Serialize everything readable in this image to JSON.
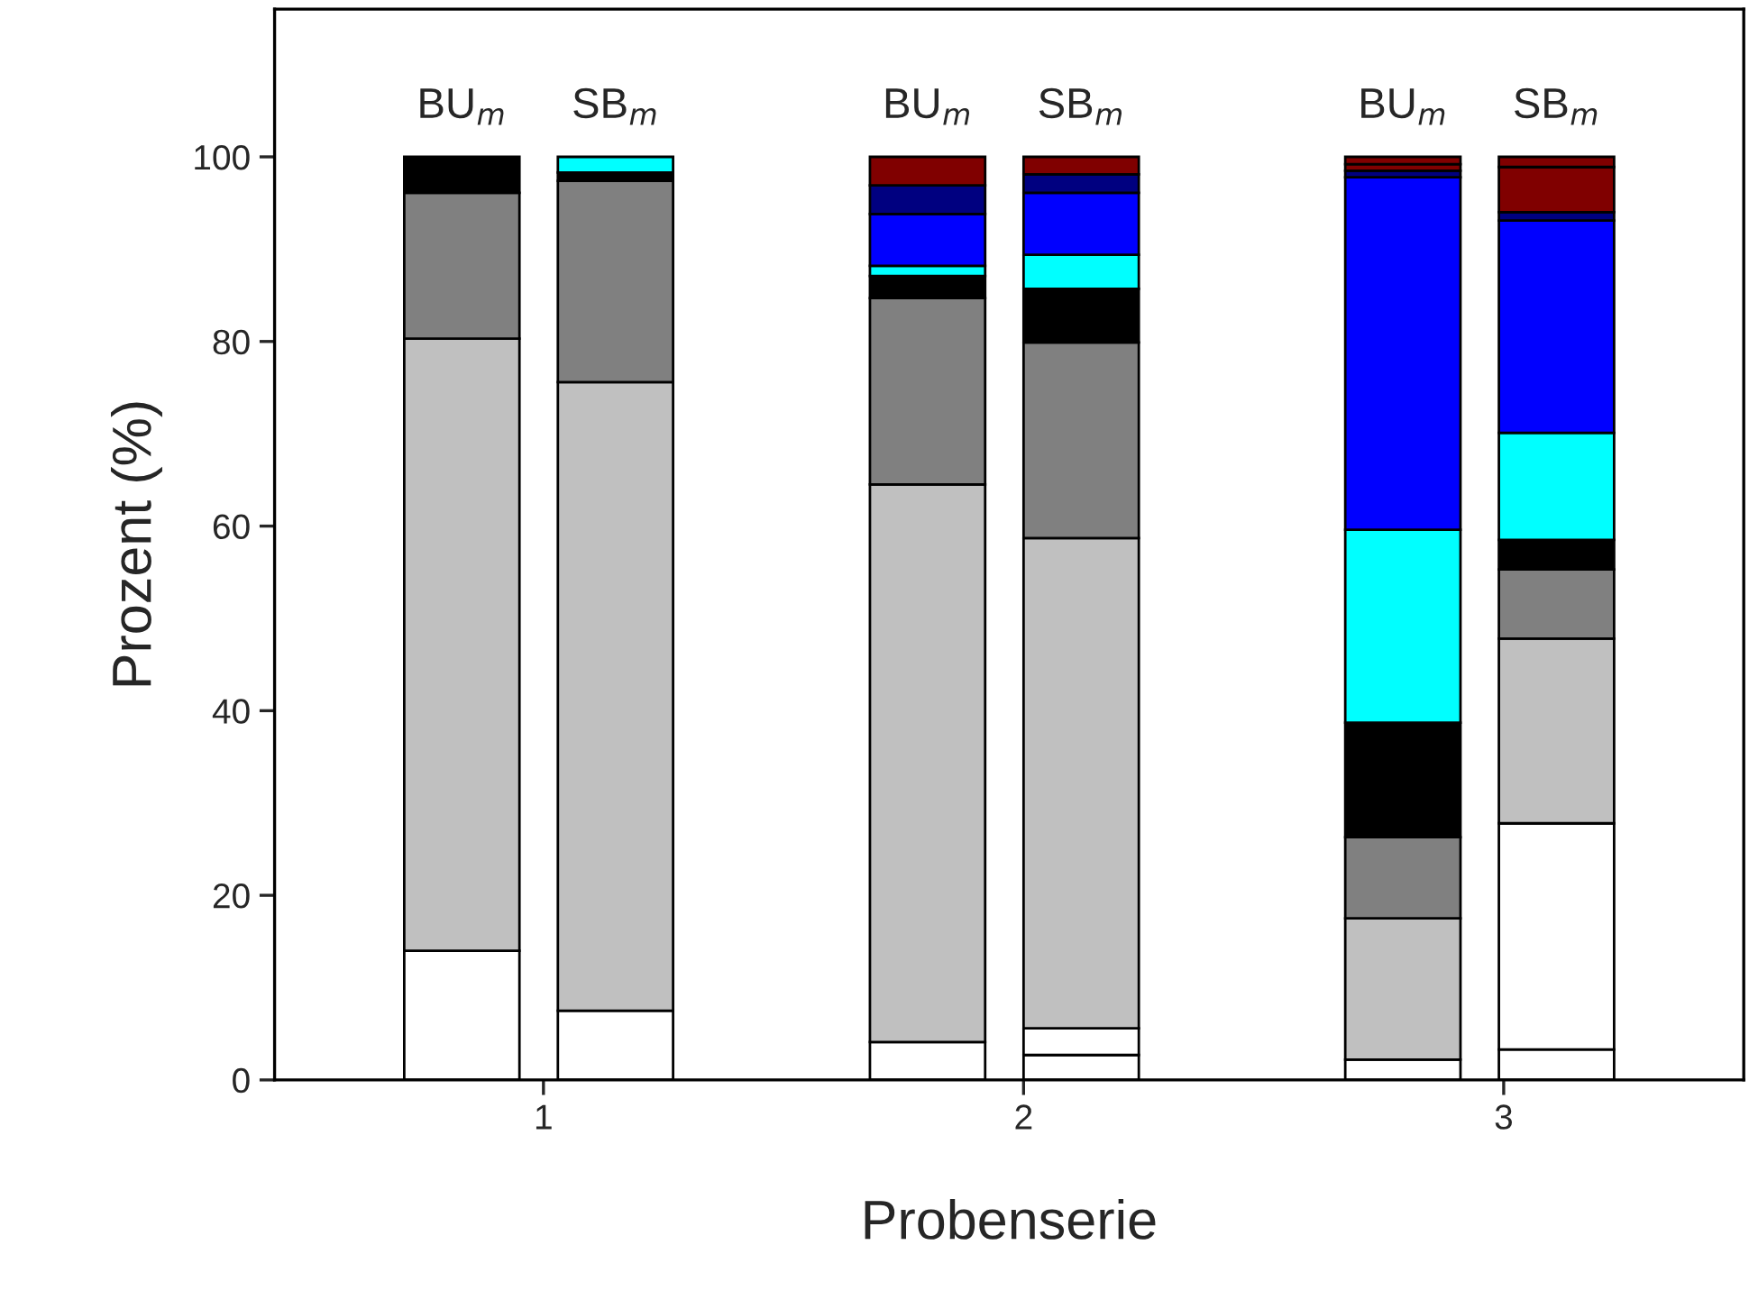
{
  "chart_data": {
    "type": "bar",
    "stacked": true,
    "xlabel": "Probenserie",
    "ylabel": "Prozent (%)",
    "x": [
      0.83,
      1.15,
      1.8,
      2.12,
      2.79,
      3.11
    ],
    "xlim": [
      0.44,
      3.5
    ],
    "xticks": [
      1,
      2,
      3
    ],
    "ylim": [
      0,
      116
    ],
    "yticks": [
      0,
      20,
      40,
      60,
      80,
      100
    ],
    "grid": false,
    "legend": false,
    "series": [
      {
        "color": "#ffffff",
        "values": [
          14.0,
          7.5,
          4.1,
          2.7,
          2.2,
          3.3
        ]
      },
      {
        "color": "#ffffff",
        "values": [
          null,
          null,
          null,
          2.9,
          null,
          24.5
        ]
      },
      {
        "color": "#c0c0c0",
        "values": [
          66.3,
          68.1,
          60.4,
          53.1,
          15.3,
          20.0
        ]
      },
      {
        "color": "#808080",
        "values": [
          15.8,
          21.8,
          20.2,
          21.2,
          8.8,
          7.5
        ]
      },
      {
        "color": "#000000",
        "values": [
          3.9,
          0.9,
          2.4,
          5.8,
          12.4,
          3.2
        ]
      },
      {
        "color": "#00ffff",
        "values": [
          null,
          1.7,
          1.1,
          3.7,
          20.9,
          11.6
        ]
      },
      {
        "color": "#0000ff",
        "values": [
          null,
          null,
          5.6,
          6.7,
          38.2,
          23.0
        ]
      },
      {
        "color": "#000080",
        "values": [
          null,
          null,
          3.1,
          2.0,
          0.7,
          0.9
        ]
      },
      {
        "color": "#800000",
        "values": [
          null,
          null,
          3.1,
          1.9,
          0.7,
          4.9
        ]
      },
      {
        "color": "#800000",
        "values": [
          null,
          null,
          null,
          null,
          0.8,
          1.1
        ]
      }
    ],
    "annotations": [
      {
        "text": "BU$_{m}$",
        "x": 0.83,
        "y": 100
      },
      {
        "text": "SB$_{m}$",
        "x": 1.15,
        "y": 100
      },
      {
        "text": "BU$_{m}$",
        "x": 1.8,
        "y": 100
      },
      {
        "text": "SB$_{m}$",
        "x": 2.12,
        "y": 100
      },
      {
        "text": "BU$_{m}$",
        "x": 2.79,
        "y": 100
      },
      {
        "text": "SB$_{m}$",
        "x": 3.11,
        "y": 100
      }
    ]
  }
}
